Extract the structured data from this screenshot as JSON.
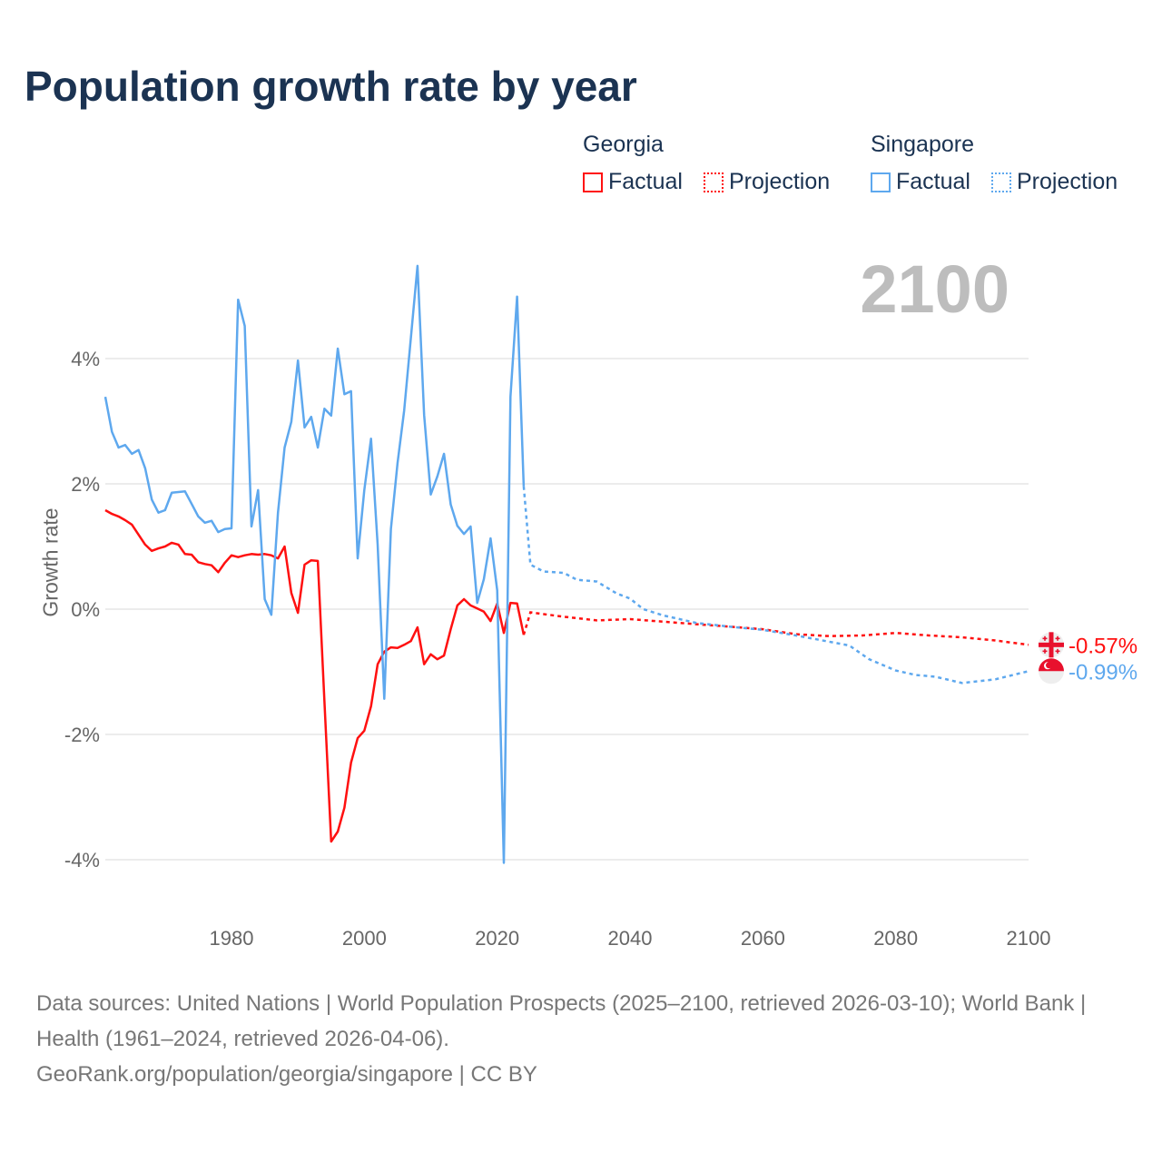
{
  "chart_data": {
    "type": "line",
    "title": "Population growth rate by year",
    "ylabel": "Growth rate",
    "xlabel": "",
    "xlim": [
      1961,
      2100
    ],
    "ylim": [
      -4.8,
      5.6
    ],
    "xticks": [
      1980,
      2000,
      2020,
      2040,
      2060,
      2080,
      2100
    ],
    "xtick_labels": [
      "1980",
      "2000",
      "2020",
      "2040",
      "2060",
      "2080",
      "2100"
    ],
    "yticks": [
      4,
      2,
      0,
      -2,
      -4
    ],
    "ytick_labels": [
      "4%",
      "2%",
      "0%",
      "-2%",
      "-4%"
    ],
    "grid": true,
    "legend_placement": "top-right",
    "current_year": "2100",
    "series": [
      {
        "name": "Georgia",
        "color": "#ff1010",
        "end_label": "-0.57%",
        "factual": {
          "x": [
            1961,
            1962,
            1963,
            1964,
            1965,
            1966,
            1967,
            1968,
            1969,
            1970,
            1971,
            1972,
            1973,
            1974,
            1975,
            1976,
            1977,
            1978,
            1979,
            1980,
            1981,
            1982,
            1983,
            1984,
            1985,
            1986,
            1987,
            1988,
            1989,
            1990,
            1991,
            1992,
            1993,
            1994,
            1995,
            1996,
            1997,
            1998,
            1999,
            2000,
            2001,
            2002,
            2003,
            2004,
            2005,
            2006,
            2007,
            2008,
            2009,
            2010,
            2011,
            2012,
            2013,
            2014,
            2015,
            2016,
            2017,
            2018,
            2019,
            2020,
            2021,
            2022,
            2023,
            2024
          ],
          "y": [
            1.58,
            1.52,
            1.48,
            1.42,
            1.35,
            1.19,
            1.03,
            0.93,
            0.97,
            1.0,
            1.06,
            1.03,
            0.88,
            0.87,
            0.75,
            0.72,
            0.7,
            0.59,
            0.74,
            0.86,
            0.83,
            0.86,
            0.88,
            0.87,
            0.88,
            0.86,
            0.81,
            1.0,
            0.26,
            -0.06,
            0.71,
            0.78,
            0.77,
            -1.48,
            -3.71,
            -3.55,
            -3.17,
            -2.45,
            -2.06,
            -1.94,
            -1.55,
            -0.88,
            -0.68,
            -0.61,
            -0.62,
            -0.57,
            -0.51,
            -0.29,
            -0.88,
            -0.72,
            -0.8,
            -0.74,
            -0.32,
            0.06,
            0.16,
            0.06,
            0.01,
            -0.04,
            -0.19,
            0.09,
            -0.38,
            0.1,
            0.09,
            -0.41
          ]
        },
        "projection": {
          "x": [
            2024,
            2025,
            2027,
            2030,
            2035,
            2040,
            2045,
            2050,
            2055,
            2060,
            2065,
            2070,
            2075,
            2080,
            2085,
            2090,
            2095,
            2100
          ],
          "y": [
            -0.41,
            -0.05,
            -0.08,
            -0.12,
            -0.18,
            -0.16,
            -0.2,
            -0.24,
            -0.28,
            -0.32,
            -0.4,
            -0.43,
            -0.42,
            -0.38,
            -0.42,
            -0.45,
            -0.5,
            -0.57
          ]
        }
      },
      {
        "name": "Singapore",
        "color": "#5ea8ee",
        "end_label": "-0.99%",
        "factual": {
          "x": [
            1961,
            1962,
            1963,
            1964,
            1965,
            1966,
            1967,
            1968,
            1969,
            1970,
            1971,
            1972,
            1973,
            1974,
            1975,
            1976,
            1977,
            1978,
            1979,
            1980,
            1981,
            1982,
            1983,
            1984,
            1985,
            1986,
            1987,
            1988,
            1989,
            1990,
            1991,
            1992,
            1993,
            1994,
            1995,
            1996,
            1997,
            1998,
            1999,
            2000,
            2001,
            2002,
            2003,
            2004,
            2005,
            2006,
            2007,
            2008,
            2009,
            2010,
            2011,
            2012,
            2013,
            2014,
            2015,
            2016,
            2017,
            2018,
            2019,
            2020,
            2021,
            2022,
            2023,
            2024
          ],
          "y": [
            3.39,
            2.83,
            2.58,
            2.62,
            2.48,
            2.54,
            2.25,
            1.75,
            1.54,
            1.58,
            1.86,
            1.87,
            1.88,
            1.68,
            1.48,
            1.38,
            1.41,
            1.23,
            1.28,
            1.29,
            4.94,
            4.52,
            1.32,
            1.9,
            0.16,
            -0.09,
            1.54,
            2.58,
            2.99,
            3.97,
            2.9,
            3.07,
            2.58,
            3.2,
            3.09,
            4.16,
            3.43,
            3.48,
            0.81,
            1.9,
            2.72,
            1.03,
            -1.43,
            1.28,
            2.33,
            3.17,
            4.33,
            5.48,
            3.1,
            1.83,
            2.12,
            2.48,
            1.67,
            1.33,
            1.2,
            1.32,
            0.1,
            0.48,
            1.13,
            0.3,
            -4.05,
            3.39,
            4.99,
            1.96
          ]
        },
        "projection": {
          "x": [
            2024,
            2025,
            2027,
            2030,
            2032,
            2035,
            2038,
            2040,
            2042,
            2045,
            2050,
            2055,
            2060,
            2065,
            2070,
            2073,
            2076,
            2080,
            2083,
            2086,
            2090,
            2095,
            2100
          ],
          "y": [
            1.96,
            0.71,
            0.6,
            0.58,
            0.47,
            0.44,
            0.25,
            0.17,
            0.0,
            -0.1,
            -0.22,
            -0.28,
            -0.33,
            -0.42,
            -0.52,
            -0.58,
            -0.8,
            -0.98,
            -1.05,
            -1.08,
            -1.18,
            -1.12,
            -0.99
          ]
        }
      }
    ],
    "legend": {
      "georgia": "Georgia",
      "singapore": "Singapore",
      "factual": "Factual",
      "projection": "Projection"
    },
    "source_lines": [
      "Data sources: United Nations | World Population Prospects (2025–2100, retrieved 2026-03-10); World Bank | Health (1961–2024, retrieved 2026-04-06).",
      "GeoRank.org/population/georgia/singapore | CC BY"
    ]
  }
}
